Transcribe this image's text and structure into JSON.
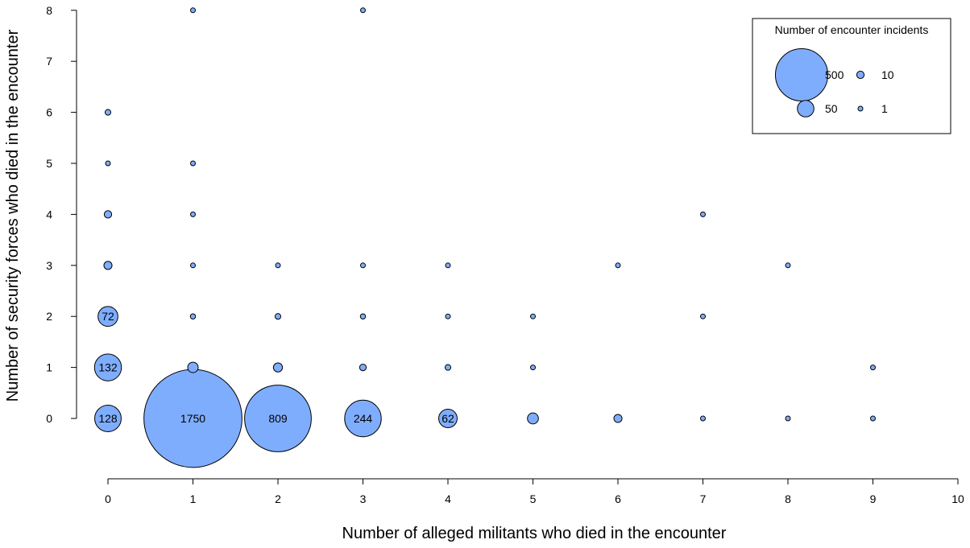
{
  "chart_data": {
    "type": "scatter",
    "xlabel": "Number of alleged militants who died in the encounter",
    "ylabel": "Number of security forces who died in the encounter",
    "xlim": [
      0,
      10
    ],
    "ylim": [
      0,
      8
    ],
    "xticks": [
      0,
      1,
      2,
      3,
      4,
      5,
      6,
      7,
      8,
      9,
      10
    ],
    "yticks": [
      0,
      1,
      2,
      3,
      4,
      5,
      6,
      7,
      8
    ],
    "grid": false,
    "bubble_color": "#7fadfd",
    "size_encoding": "Number of encounter incidents",
    "points": [
      {
        "x": 0,
        "y": 0,
        "n": 128,
        "label": "128"
      },
      {
        "x": 0,
        "y": 1,
        "n": 132,
        "label": "132"
      },
      {
        "x": 0,
        "y": 2,
        "n": 72,
        "label": "72"
      },
      {
        "x": 0,
        "y": 3,
        "n": 12,
        "label": ""
      },
      {
        "x": 0,
        "y": 4,
        "n": 10,
        "label": ""
      },
      {
        "x": 0,
        "y": 5,
        "n": 4,
        "label": ""
      },
      {
        "x": 0,
        "y": 6,
        "n": 6,
        "label": ""
      },
      {
        "x": 1,
        "y": 0,
        "n": 1750,
        "label": "1750"
      },
      {
        "x": 1,
        "y": 1,
        "n": 20,
        "label": ""
      },
      {
        "x": 1,
        "y": 2,
        "n": 5,
        "label": ""
      },
      {
        "x": 1,
        "y": 3,
        "n": 2,
        "label": ""
      },
      {
        "x": 1,
        "y": 4,
        "n": 1,
        "label": ""
      },
      {
        "x": 1,
        "y": 5,
        "n": 3,
        "label": ""
      },
      {
        "x": 1,
        "y": 8,
        "n": 2,
        "label": ""
      },
      {
        "x": 2,
        "y": 0,
        "n": 809,
        "label": "809"
      },
      {
        "x": 2,
        "y": 1,
        "n": 15,
        "label": ""
      },
      {
        "x": 2,
        "y": 2,
        "n": 6,
        "label": ""
      },
      {
        "x": 2,
        "y": 3,
        "n": 2,
        "label": ""
      },
      {
        "x": 3,
        "y": 0,
        "n": 244,
        "label": "244"
      },
      {
        "x": 3,
        "y": 1,
        "n": 8,
        "label": ""
      },
      {
        "x": 3,
        "y": 2,
        "n": 5,
        "label": ""
      },
      {
        "x": 3,
        "y": 3,
        "n": 1,
        "label": ""
      },
      {
        "x": 3,
        "y": 8,
        "n": 1,
        "label": ""
      },
      {
        "x": 4,
        "y": 0,
        "n": 62,
        "label": "62"
      },
      {
        "x": 4,
        "y": 1,
        "n": 6,
        "label": ""
      },
      {
        "x": 4,
        "y": 2,
        "n": 3,
        "label": ""
      },
      {
        "x": 4,
        "y": 3,
        "n": 1,
        "label": ""
      },
      {
        "x": 5,
        "y": 0,
        "n": 22,
        "label": ""
      },
      {
        "x": 5,
        "y": 1,
        "n": 4,
        "label": ""
      },
      {
        "x": 5,
        "y": 2,
        "n": 2,
        "label": ""
      },
      {
        "x": 6,
        "y": 0,
        "n": 12,
        "label": ""
      },
      {
        "x": 6,
        "y": 3,
        "n": 1,
        "label": ""
      },
      {
        "x": 7,
        "y": 0,
        "n": 3,
        "label": ""
      },
      {
        "x": 7,
        "y": 2,
        "n": 1,
        "label": ""
      },
      {
        "x": 7,
        "y": 4,
        "n": 1,
        "label": ""
      },
      {
        "x": 8,
        "y": 0,
        "n": 2,
        "label": ""
      },
      {
        "x": 8,
        "y": 3,
        "n": 1,
        "label": ""
      },
      {
        "x": 9,
        "y": 0,
        "n": 1,
        "label": ""
      },
      {
        "x": 9,
        "y": 1,
        "n": 2,
        "label": ""
      }
    ],
    "legend": {
      "title": "Number of encounter incidents",
      "placement": "top-right",
      "entries": [
        {
          "n": 500,
          "label": "500"
        },
        {
          "n": 10,
          "label": "10"
        },
        {
          "n": 50,
          "label": "50"
        },
        {
          "n": 1,
          "label": "1"
        }
      ]
    }
  }
}
